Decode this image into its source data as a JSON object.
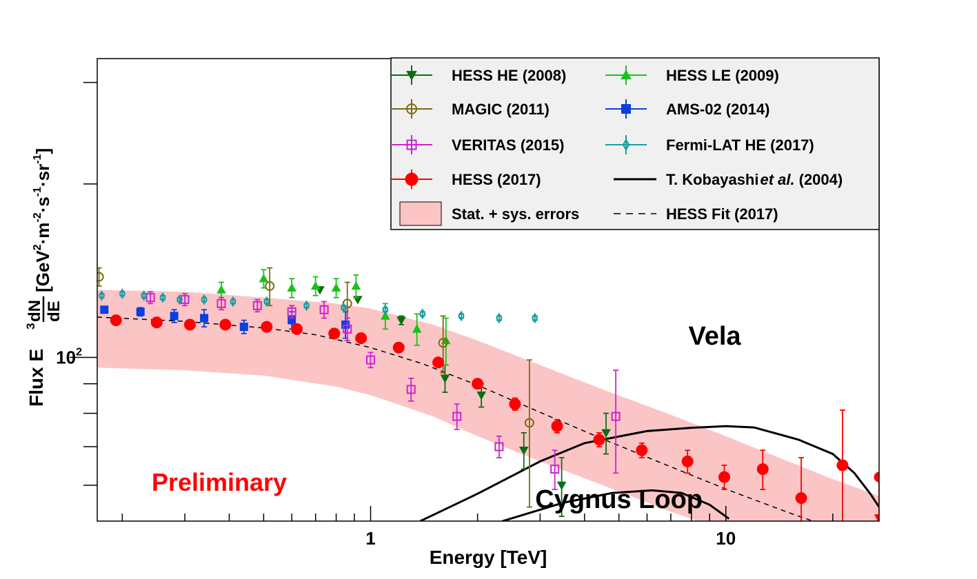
{
  "chart_data": {
    "type": "scatter",
    "xlabel": "Energy [TeV]",
    "ylabel_prefix": "Flux E",
    "ylabel_exp": "3",
    "ylabel_frac_num": "dN",
    "ylabel_frac_den": "dE",
    "ylabel_units": "[GeV",
    "ylabel_units_2": "·m",
    "ylabel_units_3": "·s",
    "ylabel_units_4": "·sr",
    "ylabel_units_end": "]",
    "ylabel_exp_2": "2",
    "ylabel_exp_m2": "-2",
    "ylabel_exp_m1": "-1",
    "x_scale": "log",
    "y_scale": "log",
    "xlim": [
      0.17,
      27
    ],
    "ylim": [
      52,
      330
    ],
    "x_ticks": [
      {
        "value": 1,
        "label": "1"
      },
      {
        "value": 10,
        "label": "10"
      }
    ],
    "y_tick_base": "10",
    "y_tick_exp": "2",
    "y_tick_value": 100,
    "watermark": "Preliminary",
    "annotations": [
      {
        "text": "Vela",
        "x": 9.3,
        "y": 109
      },
      {
        "text": "Cygnus Loop",
        "x": 5.0,
        "y": 56.8
      }
    ],
    "legend_position": "top-right",
    "legend": [
      {
        "label": "HESS HE (2008)",
        "key": "hess_he"
      },
      {
        "label": "HESS LE (2009)",
        "key": "hess_le"
      },
      {
        "label": "MAGIC (2011)",
        "key": "magic"
      },
      {
        "label": "AMS-02 (2014)",
        "key": "ams"
      },
      {
        "label": "VERITAS (2015)",
        "key": "veritas"
      },
      {
        "label": "Fermi-LAT HE (2017)",
        "key": "fermi"
      },
      {
        "label": "HESS (2017)",
        "key": "hess17"
      },
      {
        "label": "T. Kobayashi",
        "label_italic": "et al.",
        "label_end": "(2004)",
        "key": "kobayashi"
      },
      {
        "label": "Stat. + sys. errors",
        "key": "band"
      },
      {
        "label": "HESS Fit (2017)",
        "key": "fit"
      }
    ],
    "series": [
      {
        "key": "hess_he",
        "color": "#0b6e12",
        "marker": "triangle-down",
        "points": [
          [
            0.72,
            131,
            0
          ],
          [
            0.92,
            126,
            0
          ],
          [
            1.22,
            116,
            2
          ],
          [
            1.62,
            92,
            5
          ],
          [
            2.05,
            86,
            4
          ],
          [
            2.7,
            69,
            5
          ],
          [
            3.45,
            60,
            7
          ],
          [
            4.6,
            74,
            6
          ]
        ]
      },
      {
        "key": "hess_le",
        "color": "#17c317",
        "marker": "triangle-up",
        "points": [
          [
            0.38,
            131,
            4
          ],
          [
            0.5,
            137,
            5
          ],
          [
            0.6,
            132,
            5
          ],
          [
            0.7,
            133,
            5
          ],
          [
            0.8,
            132,
            5
          ],
          [
            0.91,
            133,
            6
          ],
          [
            1.1,
            118,
            6
          ],
          [
            1.35,
            112,
            7
          ],
          [
            1.63,
            107,
            10
          ]
        ]
      },
      {
        "key": "magic",
        "color": "#7a6a10",
        "marker": "circle-open",
        "points": [
          [
            0.172,
            138,
            5
          ],
          [
            0.52,
            133,
            10
          ],
          [
            0.86,
            124,
            11
          ],
          [
            1.6,
            106,
            12
          ],
          [
            2.8,
            77,
            22
          ]
        ]
      },
      {
        "key": "ams",
        "color": "#0a3fe0",
        "marker": "square",
        "points": [
          [
            0.178,
            121,
            1
          ],
          [
            0.225,
            120,
            2
          ],
          [
            0.28,
            118,
            3
          ],
          [
            0.34,
            117,
            4
          ],
          [
            0.44,
            113,
            3
          ],
          [
            0.6,
            116,
            4
          ],
          [
            0.85,
            114,
            6
          ]
        ]
      },
      {
        "key": "veritas",
        "color": "#d020d0",
        "marker": "square-open",
        "points": [
          [
            0.24,
            127,
            3
          ],
          [
            0.3,
            126,
            3
          ],
          [
            0.38,
            124,
            3
          ],
          [
            0.48,
            123,
            3
          ],
          [
            0.6,
            120,
            3
          ],
          [
            0.74,
            121,
            4
          ],
          [
            0.86,
            112,
            5
          ],
          [
            1.0,
            99,
            3
          ],
          [
            1.3,
            88,
            4
          ],
          [
            1.75,
            79,
            4
          ],
          [
            2.3,
            70,
            3
          ],
          [
            3.3,
            64,
            5
          ],
          [
            4.9,
            79,
            16
          ]
        ]
      },
      {
        "key": "fermi",
        "color": "#1a9ca0",
        "marker": "diamond-open",
        "points": [
          [
            0.175,
            128,
            1
          ],
          [
            0.2,
            129,
            1
          ],
          [
            0.23,
            128,
            1
          ],
          [
            0.26,
            127,
            1
          ],
          [
            0.29,
            126,
            1
          ],
          [
            0.34,
            126,
            1
          ],
          [
            0.41,
            125,
            1
          ],
          [
            0.51,
            125,
            1
          ],
          [
            0.66,
            123,
            1
          ],
          [
            0.84,
            122,
            1
          ],
          [
            1.1,
            121,
            1
          ],
          [
            1.4,
            119,
            1
          ],
          [
            1.8,
            118,
            1
          ],
          [
            2.3,
            117,
            1
          ],
          [
            2.9,
            117,
            1
          ]
        ]
      },
      {
        "key": "hess17",
        "color": "#ff0000",
        "marker": "circle",
        "points": [
          [
            0.192,
            116,
            1
          ],
          [
            0.25,
            115,
            1
          ],
          [
            0.31,
            114,
            1
          ],
          [
            0.39,
            114,
            1
          ],
          [
            0.51,
            113,
            1
          ],
          [
            0.62,
            112,
            1
          ],
          [
            0.79,
            110,
            1
          ],
          [
            0.94,
            108,
            1
          ],
          [
            1.2,
            104,
            1
          ],
          [
            1.55,
            98,
            1
          ],
          [
            2.0,
            90,
            1
          ],
          [
            2.55,
            83,
            2
          ],
          [
            3.35,
            76,
            2
          ],
          [
            4.4,
            72,
            2
          ],
          [
            5.8,
            69,
            2
          ],
          [
            7.8,
            66,
            3
          ],
          [
            9.9,
            62,
            3
          ],
          [
            12.7,
            64,
            5
          ],
          [
            16.3,
            57,
            10
          ],
          [
            21.3,
            65,
            16
          ],
          [
            27,
            62,
            0
          ]
        ],
        "upper_limit_index": 20
      }
    ],
    "fit_line": [
      [
        0.17,
        117.5
      ],
      [
        0.3,
        115.5
      ],
      [
        0.5,
        112.5
      ],
      [
        0.7,
        109.5
      ],
      [
        1.0,
        104
      ],
      [
        1.4,
        97.5
      ],
      [
        2.0,
        89.5
      ],
      [
        3.0,
        80.3
      ],
      [
        4.5,
        72.2
      ],
      [
        6.5,
        65.8
      ],
      [
        10,
        59.1
      ],
      [
        15,
        53.8
      ],
      [
        20,
        50.6
      ]
    ],
    "band_upper": [
      [
        0.17,
        131
      ],
      [
        0.3,
        130
      ],
      [
        0.5,
        127
      ],
      [
        0.8,
        124
      ],
      [
        1.0,
        121.5
      ],
      [
        1.5,
        114
      ],
      [
        2.0,
        107
      ],
      [
        3.0,
        97
      ],
      [
        4.5,
        88
      ],
      [
        7.0,
        79.5
      ],
      [
        10,
        73
      ],
      [
        15,
        66
      ],
      [
        20,
        61.5
      ],
      [
        27,
        57.5
      ]
    ],
    "band_lower": [
      [
        0.17,
        96
      ],
      [
        0.3,
        95
      ],
      [
        0.5,
        93
      ],
      [
        0.8,
        89
      ],
      [
        1.0,
        86
      ],
      [
        1.5,
        79
      ],
      [
        2.0,
        73
      ],
      [
        3.0,
        66
      ],
      [
        4.5,
        60
      ],
      [
        7.0,
        54
      ],
      [
        10,
        50
      ],
      [
        27,
        50
      ]
    ],
    "vela_curve": [
      [
        1.38,
        52
      ],
      [
        2,
        58
      ],
      [
        3,
        66
      ],
      [
        4,
        71
      ],
      [
        6,
        74.5
      ],
      [
        8,
        75.5
      ],
      [
        10,
        76
      ],
      [
        12,
        75.6
      ],
      [
        16,
        72
      ],
      [
        20,
        68
      ],
      [
        23,
        63
      ],
      [
        25.5,
        58
      ],
      [
        27,
        55
      ]
    ],
    "cygnus_curve": [
      [
        2.35,
        52
      ],
      [
        3.5,
        56
      ],
      [
        4.8,
        58.2
      ],
      [
        6.2,
        58.8
      ],
      [
        7.5,
        58.2
      ],
      [
        9,
        55.5
      ],
      [
        10.2,
        52.5
      ]
    ],
    "colors": {
      "band": "#fbc5c5",
      "legend_bg": "#f0f0f0",
      "watermark": "#ff0000"
    }
  }
}
